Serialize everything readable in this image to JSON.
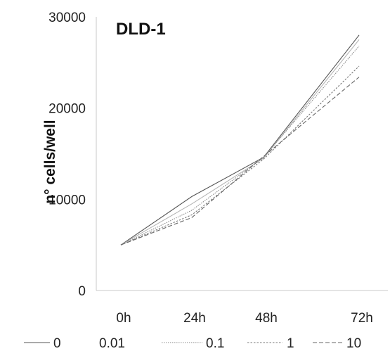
{
  "chart_data": {
    "type": "line",
    "title": "DLD-1",
    "ylabel": "n° cells/well",
    "xlabel": "",
    "categories": [
      "0h",
      "24h",
      "48h",
      "72h"
    ],
    "ylim": [
      0,
      30000
    ],
    "yticks": [
      "0",
      "10000",
      "20000",
      "30000"
    ],
    "grid": false,
    "legend_position": "bottom",
    "series": [
      {
        "name": "0",
        "values": [
          5000,
          10300,
          14600,
          28000
        ],
        "color": "#555555",
        "dash": ""
      },
      {
        "name": "0.01",
        "values": [
          5000,
          9500,
          14500,
          27500
        ],
        "color": "#b5b5b5",
        "dash": ""
      },
      {
        "name": "0.1",
        "values": [
          5000,
          8800,
          14600,
          26800
        ],
        "color": "#8a8a8a",
        "dash": "1.5,1.5"
      },
      {
        "name": "1",
        "values": [
          5000,
          8300,
          14400,
          24600
        ],
        "color": "#777777",
        "dash": "2.5,2"
      },
      {
        "name": "10",
        "values": [
          5000,
          8000,
          14700,
          23400
        ],
        "color": "#666666",
        "dash": "6,3"
      }
    ]
  }
}
